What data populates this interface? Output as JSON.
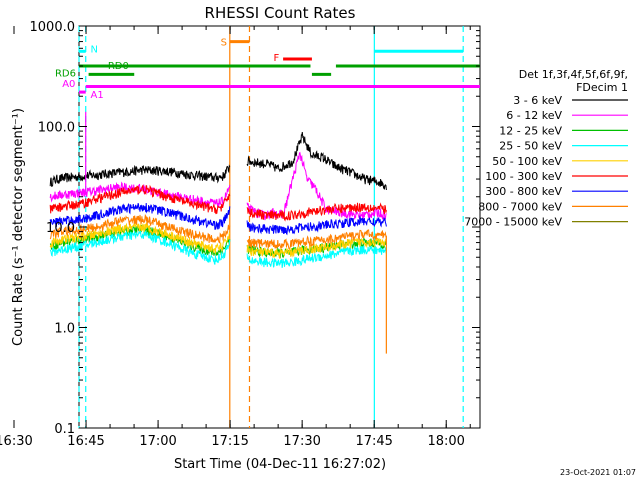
{
  "chart_data": {
    "type": "line",
    "title": "RHESSI Count Rates",
    "xlabel": "Start Time (04-Dec-11 16:27:02)",
    "ylabel": "Count Rate (s⁻¹ detector segment⁻¹)",
    "yscale": "log",
    "ylim": [
      0.1,
      1000
    ],
    "xlim_minutes": [
      16.5,
      100.0
    ],
    "x_ticks": [
      {
        "minute": 2.967,
        "label": "16:30"
      },
      {
        "minute": 17.967,
        "label": "16:45"
      },
      {
        "minute": 32.967,
        "label": "17:00"
      },
      {
        "minute": 47.967,
        "label": "17:15"
      },
      {
        "minute": 62.967,
        "label": "17:30"
      },
      {
        "minute": 77.967,
        "label": "17:45"
      },
      {
        "minute": 92.967,
        "label": "18:00"
      }
    ],
    "y_ticks": [
      {
        "value": 0.1,
        "label": "0.1"
      },
      {
        "value": 1,
        "label": "1.0"
      },
      {
        "value": 10,
        "label": "10.0"
      },
      {
        "value": 100,
        "label": "100.0"
      },
      {
        "value": 1000,
        "label": "1000.0"
      }
    ],
    "legend": {
      "header": [
        "Det 1f,3f,4f,5f,6f,9f,",
        "FDecim 1"
      ],
      "placement": "right"
    },
    "series": [
      {
        "name": "3 - 6 keV",
        "color": "#000000",
        "t": [
          10.5,
          12,
          14,
          17,
          20,
          25,
          30,
          35,
          40,
          45,
          46.5,
          47.9,
          52,
          56,
          58,
          61,
          63,
          65,
          67,
          70,
          73,
          76,
          79,
          80.5
        ],
        "v": [
          28,
          30,
          31,
          32,
          33,
          35,
          37,
          36,
          33,
          31,
          32,
          40,
          45,
          42,
          38,
          45,
          80,
          52,
          50,
          40,
          35,
          30,
          28,
          26
        ]
      },
      {
        "name": "6 - 12 keV",
        "color": "#ff00ff",
        "t": [
          10.5,
          13,
          17,
          20,
          25,
          30,
          35,
          40,
          45,
          46.5,
          47.9,
          52,
          55,
          57,
          59,
          61,
          62.5,
          64,
          65.5,
          68,
          71,
          75,
          79,
          80.5
        ],
        "v": [
          20,
          21,
          22,
          23,
          25,
          24,
          21,
          19,
          17,
          18,
          25,
          15,
          13,
          14,
          13,
          30,
          55,
          30,
          25,
          15,
          14,
          13,
          14,
          13
        ]
      },
      {
        "name": "12 - 25 keV",
        "color": "#00c000",
        "t": [
          10.5,
          13,
          17,
          20,
          25,
          30,
          35,
          40,
          45,
          46.5,
          47.9,
          52,
          56,
          60,
          64,
          68,
          72,
          76,
          80.5
        ],
        "v": [
          6.5,
          7,
          7.5,
          8,
          9,
          9.5,
          8,
          6.5,
          5.5,
          6,
          7.5,
          6,
          5.5,
          5.5,
          6,
          6.3,
          6.8,
          7,
          6.8
        ]
      },
      {
        "name": "25 - 50 keV",
        "color": "#00ffff",
        "t": [
          10.5,
          13,
          17,
          20,
          25,
          30,
          35,
          40,
          45,
          46.5,
          47.9,
          52,
          56,
          60,
          64,
          68,
          72,
          76,
          80.5
        ],
        "v": [
          5.5,
          6,
          6.5,
          7,
          8,
          8.5,
          7,
          5.5,
          4.7,
          5.2,
          6.8,
          4.7,
          4.4,
          4.4,
          4.8,
          5.2,
          5.7,
          6,
          5.8
        ]
      },
      {
        "name": "50 - 100 keV",
        "color": "#ffd000",
        "t": [
          10.5,
          13,
          17,
          20,
          25,
          30,
          35,
          40,
          45,
          46.5,
          47.9,
          52,
          56,
          60,
          64,
          68,
          72,
          76,
          80.5
        ],
        "v": [
          7,
          7.5,
          8,
          8.5,
          9.5,
          10,
          8.5,
          7,
          6,
          6.5,
          8.5,
          5.8,
          5.5,
          5.5,
          6,
          6.3,
          6.8,
          7.2,
          7
        ]
      },
      {
        "name": "100 - 300 keV",
        "color": "#ff0000",
        "t": [
          10.5,
          13,
          17,
          20,
          25,
          30,
          35,
          40,
          45,
          46.5,
          47.9,
          52,
          56,
          60,
          64,
          68,
          72,
          76,
          80.5
        ],
        "v": [
          15,
          16,
          17,
          19,
          22,
          24,
          20,
          17,
          15,
          16,
          22,
          14,
          13,
          13,
          14,
          15,
          15.5,
          16,
          15
        ]
      },
      {
        "name": "300 - 800 keV",
        "color": "#0000ff",
        "t": [
          10.5,
          13,
          17,
          20,
          25,
          30,
          35,
          40,
          45,
          46.5,
          47.9,
          52,
          56,
          60,
          64,
          68,
          72,
          76,
          80.5
        ],
        "v": [
          11,
          11.5,
          12,
          13,
          15,
          16,
          14,
          12,
          10.5,
          11,
          15,
          10,
          9.5,
          9.5,
          10,
          10.5,
          11,
          11.5,
          11
        ]
      },
      {
        "name": "800 - 7000 keV",
        "color": "#ff8000",
        "t": [
          10.5,
          13,
          17,
          20,
          25,
          30,
          35,
          40,
          45,
          46.5,
          47.9,
          52,
          56,
          60,
          64,
          68,
          72,
          76,
          80.5
        ],
        "v": [
          8.5,
          9,
          9.5,
          10,
          11.5,
          12,
          10,
          8.5,
          7.5,
          8,
          10,
          7,
          6.8,
          6.8,
          7.2,
          7.5,
          8,
          8.5,
          8.2
        ]
      },
      {
        "name": "7000 - 15000 keV",
        "color": "#808000",
        "t": [],
        "v": []
      }
    ],
    "spikes": [
      {
        "series": "6 - 12 keV",
        "minute": 17.9,
        "value": 140
      },
      {
        "series": "800 - 7000 keV",
        "minute": 80.5,
        "value": 0.55
      }
    ],
    "vertical_markers": [
      {
        "minute": 16.5,
        "color": "#00ffff",
        "style": "dashed"
      },
      {
        "minute": 17.9,
        "color": "#00ffff",
        "style": "dashed"
      },
      {
        "minute": 47.9,
        "color": "#ff8000",
        "style": "solid"
      },
      {
        "minute": 52.0,
        "color": "#ff8000",
        "style": "dashed"
      },
      {
        "minute": 78.0,
        "color": "#00ffff",
        "style": "solid"
      },
      {
        "minute": 96.5,
        "color": "#00ffff",
        "style": "dashed"
      }
    ],
    "flag_bars": [
      {
        "label": "N",
        "color": "#00ffff",
        "y": 560,
        "segments": [
          [
            16.5,
            17.9
          ],
          [
            78.0,
            96.5
          ]
        ],
        "label_minute": 18.9,
        "label_y": 600
      },
      {
        "label": "RD0",
        "color": "#00a000",
        "y": 400,
        "segments": [
          [
            16.5,
            64.7
          ],
          [
            70.0,
            100.0
          ]
        ],
        "label_minute": 22.5,
        "label_y": 410
      },
      {
        "label": "RD6",
        "color": "#00a000",
        "y": 330,
        "segments": [
          [
            18.5,
            28.0
          ],
          [
            65.0,
            69.0
          ]
        ],
        "label_minute": 11.5,
        "label_y": 345
      },
      {
        "label": "A0",
        "color": "#ff00ff",
        "y": 220,
        "segments": [
          [
            16.5,
            17.9
          ]
        ],
        "label_minute": 13.0,
        "label_y": 270
      },
      {
        "label": "A1",
        "color": "#ff00ff",
        "y": 250,
        "segments": [
          [
            17.9,
            100.0
          ]
        ],
        "label_minute": 18.9,
        "label_y": 210
      },
      {
        "label": "S",
        "color": "#ff8000",
        "y": 700,
        "segments": [
          [
            47.9,
            52.0
          ]
        ],
        "label_minute": 46.0,
        "label_y": 700
      },
      {
        "label": "F",
        "color": "#ff0000",
        "y": 470,
        "segments": [
          [
            59.0,
            65.0
          ]
        ],
        "label_minute": 57.0,
        "label_y": 490
      }
    ]
  },
  "footer": {
    "timestamp": "23-Oct-2021 01:07"
  }
}
